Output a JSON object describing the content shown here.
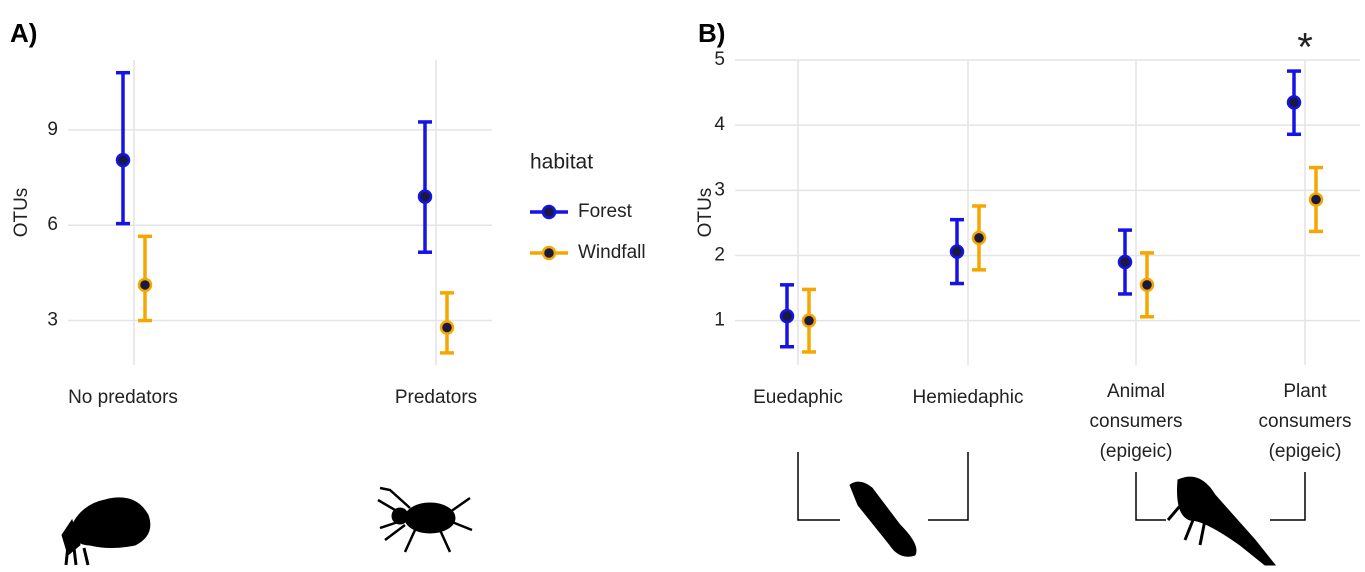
{
  "chart_data": [
    {
      "type": "errorbar",
      "panel_label": "A)",
      "ylabel": "OTUs",
      "legend_title": "habitat",
      "categories": [
        "No predators",
        "Predators"
      ],
      "series": [
        {
          "name": "Forest",
          "color": "#1414e6",
          "values": [
            8.05,
            6.9
          ],
          "lower": [
            6.05,
            5.15
          ],
          "upper": [
            10.8,
            9.25
          ]
        },
        {
          "name": "Windfall",
          "color": "#f5a700",
          "values": [
            4.12,
            2.78
          ],
          "lower": [
            3.0,
            1.98
          ],
          "upper": [
            5.65,
            3.87
          ]
        }
      ],
      "ylim": [
        1.6,
        11.2
      ],
      "yticks": [
        3,
        6,
        9
      ],
      "grid": true
    },
    {
      "type": "errorbar",
      "panel_label": "B)",
      "ylabel": "OTUs",
      "categories": [
        [
          "Euedaphic"
        ],
        [
          "Hemiedaphic"
        ],
        [
          "Animal",
          "consumers",
          "(epigeic)"
        ],
        [
          "Plant",
          "consumers",
          "(epigeic)"
        ]
      ],
      "series": [
        {
          "name": "Forest",
          "color": "#1414e6",
          "values": [
            1.07,
            2.06,
            1.9,
            4.35
          ],
          "lower": [
            0.6,
            1.57,
            1.41,
            3.86
          ],
          "upper": [
            1.55,
            2.55,
            2.39,
            4.83
          ]
        },
        {
          "name": "Windfall",
          "color": "#f5a700",
          "values": [
            1.0,
            2.27,
            1.55,
            2.86
          ],
          "lower": [
            0.52,
            1.78,
            1.06,
            2.37
          ],
          "upper": [
            1.48,
            2.76,
            2.04,
            3.35
          ]
        }
      ],
      "ylim": [
        0.32,
        5.0
      ],
      "yticks": [
        1,
        2,
        3,
        4,
        5
      ],
      "grid": true,
      "annotations": [
        {
          "text": "*"
        }
      ]
    }
  ]
}
